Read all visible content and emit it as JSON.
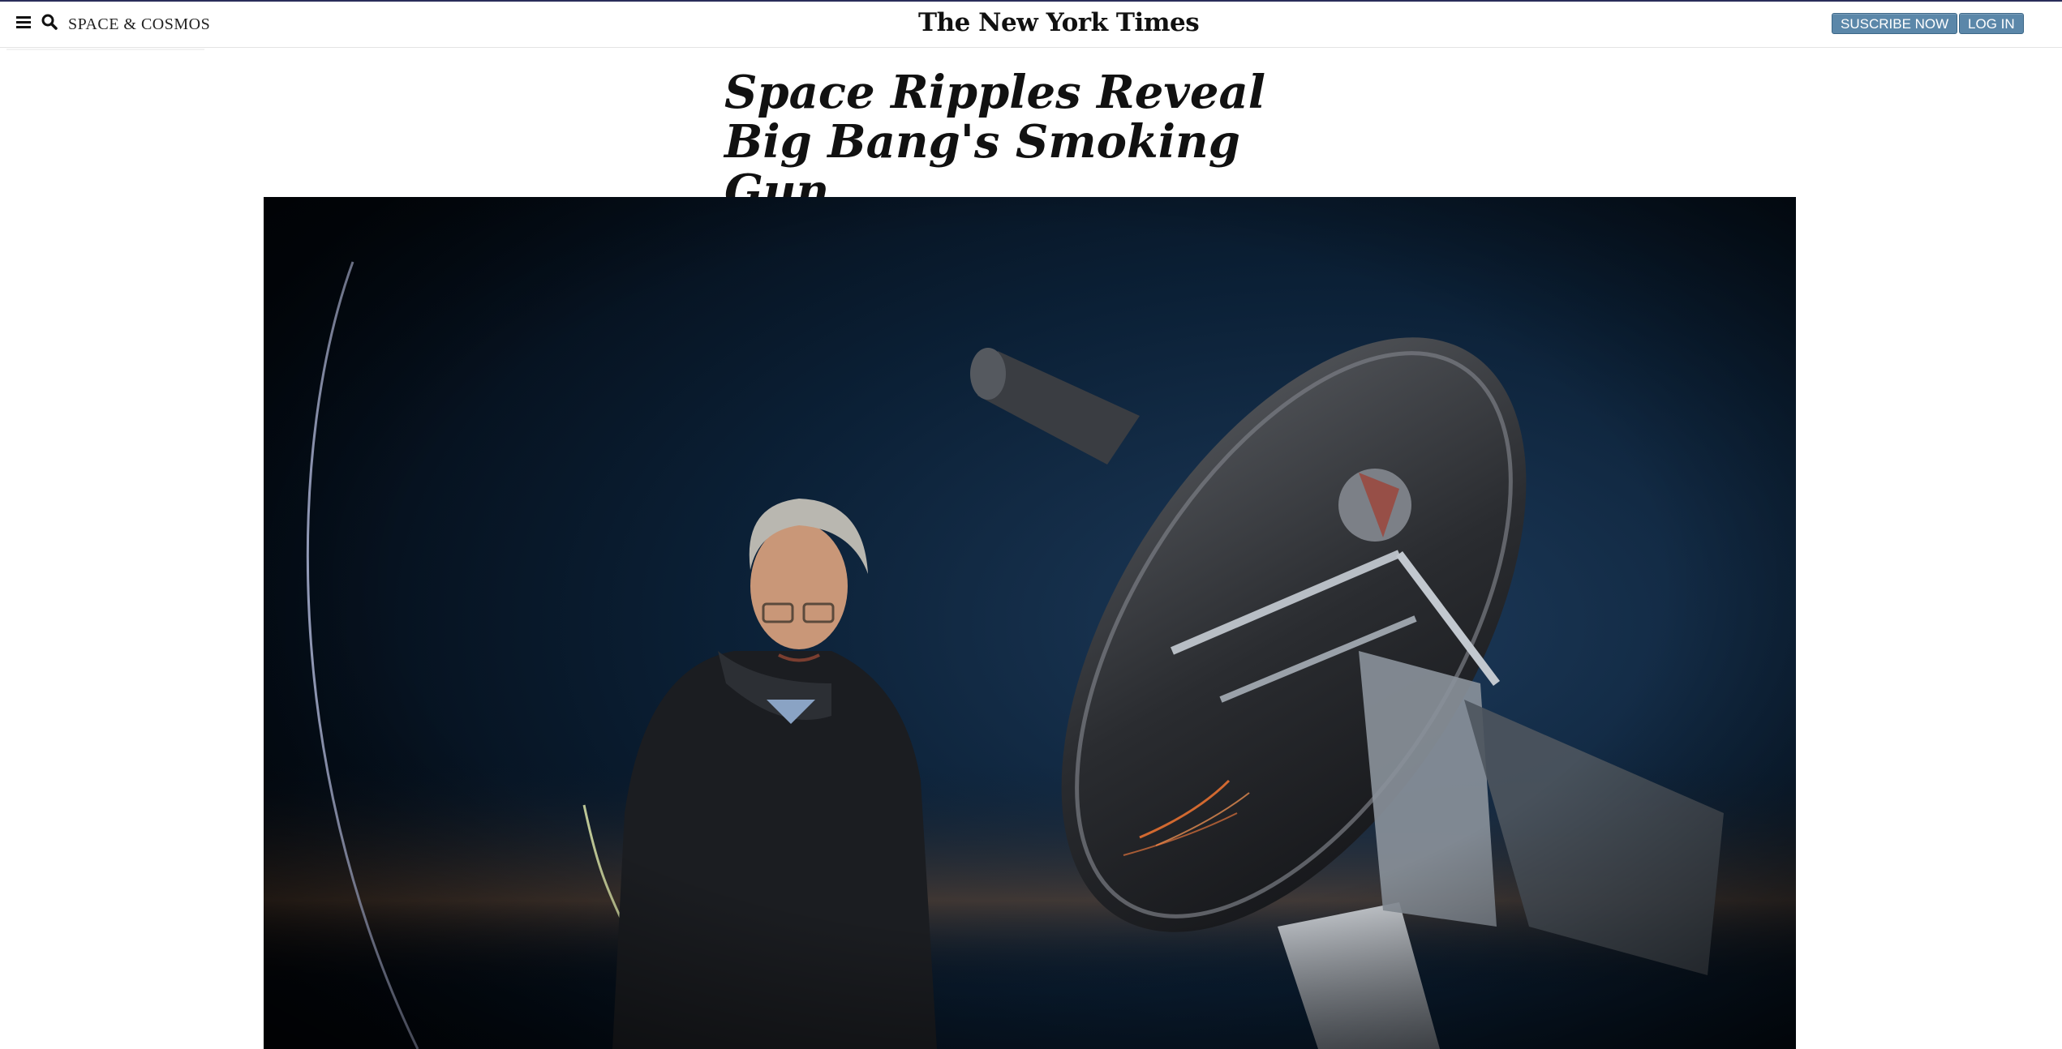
{
  "header": {
    "section": "SPACE & COSMOS",
    "logo": "The New York Times",
    "subscribe_label": "SUSCRIBE NOW",
    "login_label": "LOG IN"
  },
  "article": {
    "headline": "Space Ripples Reveal Big Bang's Smoking Gun"
  },
  "icons": {
    "menu": "hamburger-menu-icon",
    "search": "search-icon"
  },
  "colors": {
    "button": "#5b87a9",
    "accent_bar": "#2a2d5a",
    "photo_sky": "#0a2038"
  }
}
